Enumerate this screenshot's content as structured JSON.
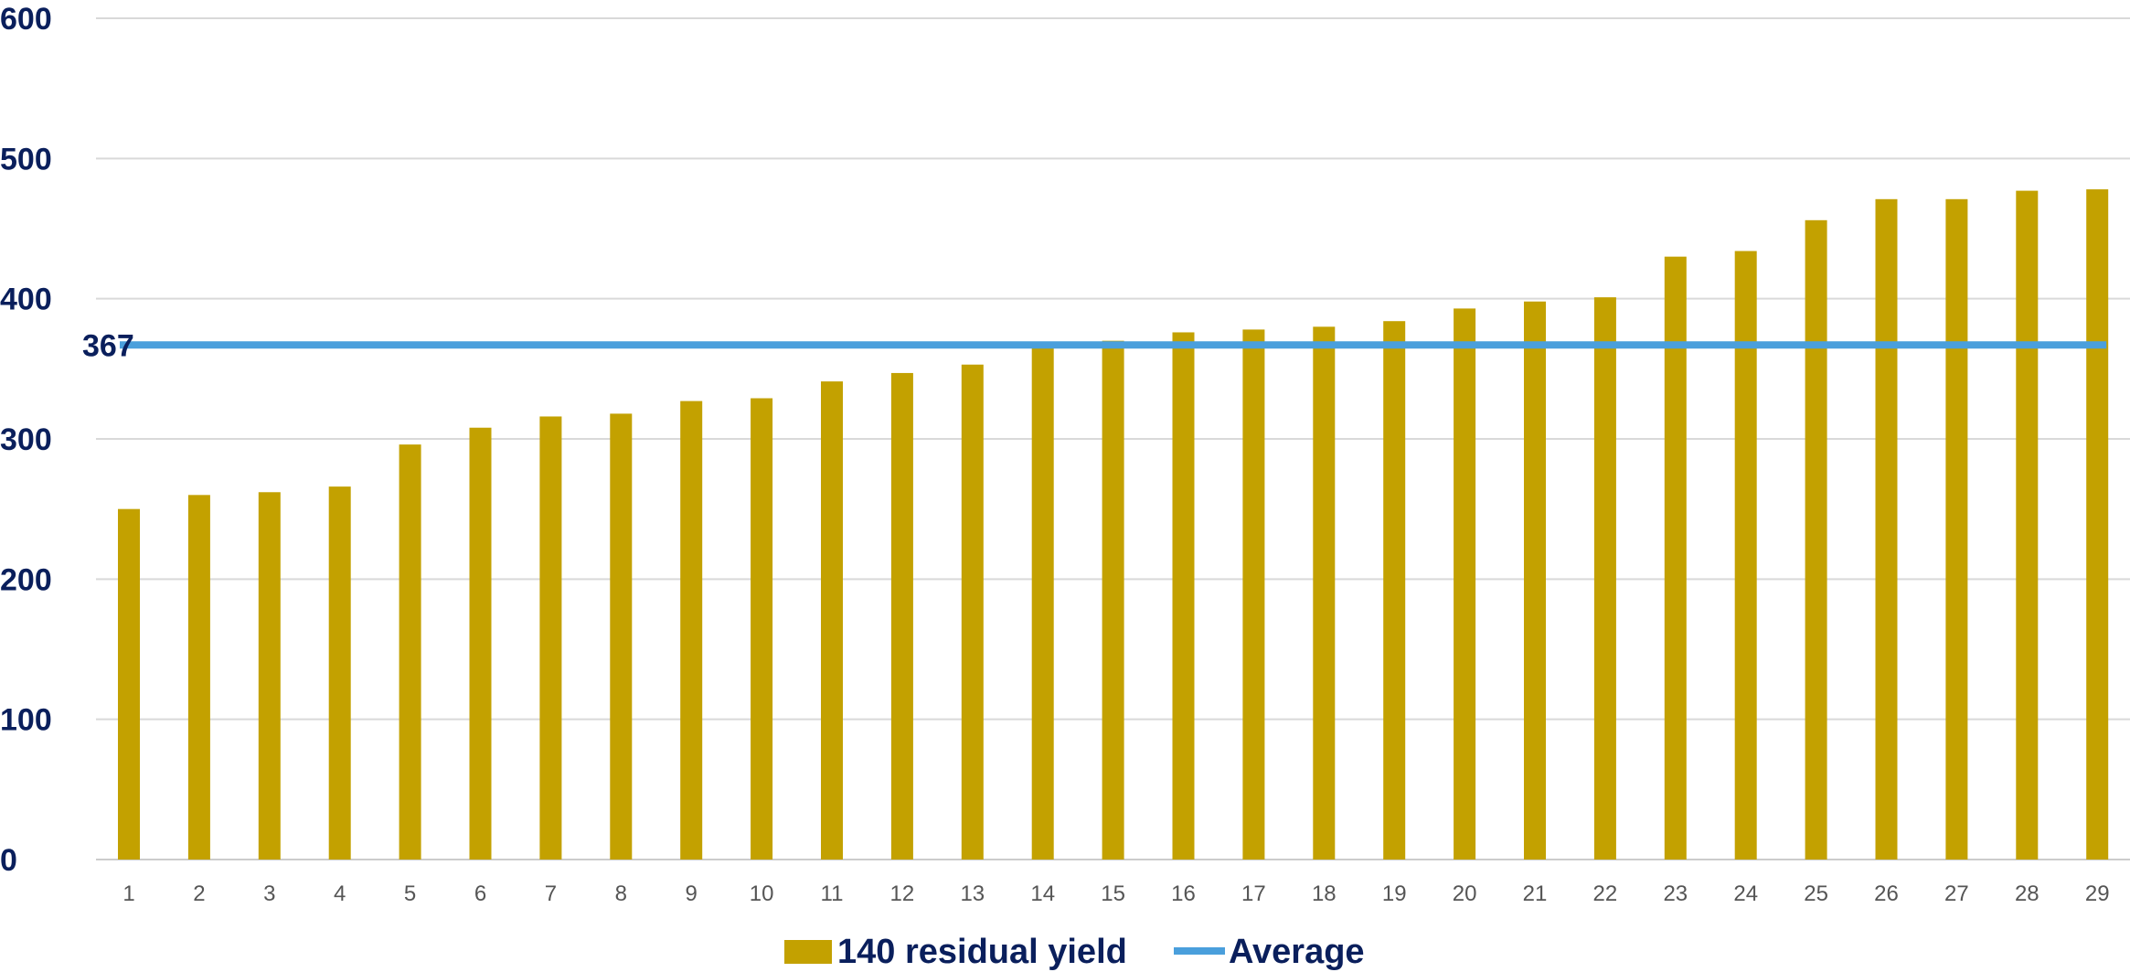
{
  "chart_data": {
    "type": "bar",
    "title": "",
    "xlabel": "",
    "ylabel": "",
    "ylim": [
      0,
      600
    ],
    "yticks": [
      0,
      100,
      200,
      300,
      400,
      500,
      600
    ],
    "grid": true,
    "legend_position": "bottom-center",
    "categories": [
      "1",
      "2",
      "3",
      "4",
      "5",
      "6",
      "7",
      "8",
      "9",
      "10",
      "11",
      "12",
      "13",
      "14",
      "15",
      "16",
      "17",
      "18",
      "19",
      "20",
      "21",
      "22",
      "23",
      "24",
      "25",
      "26",
      "27",
      "28",
      "29"
    ],
    "series": [
      {
        "name": "140 residual yield",
        "type": "bar",
        "color": "#c3a100",
        "values": [
          250,
          260,
          262,
          266,
          296,
          308,
          316,
          318,
          327,
          329,
          341,
          347,
          353,
          367,
          370,
          376,
          378,
          380,
          384,
          393,
          398,
          401,
          430,
          434,
          456,
          471,
          471,
          477,
          478
        ]
      },
      {
        "name": "Average",
        "type": "line",
        "color": "#4a9fdc",
        "value": 367,
        "label": "367"
      }
    ]
  }
}
